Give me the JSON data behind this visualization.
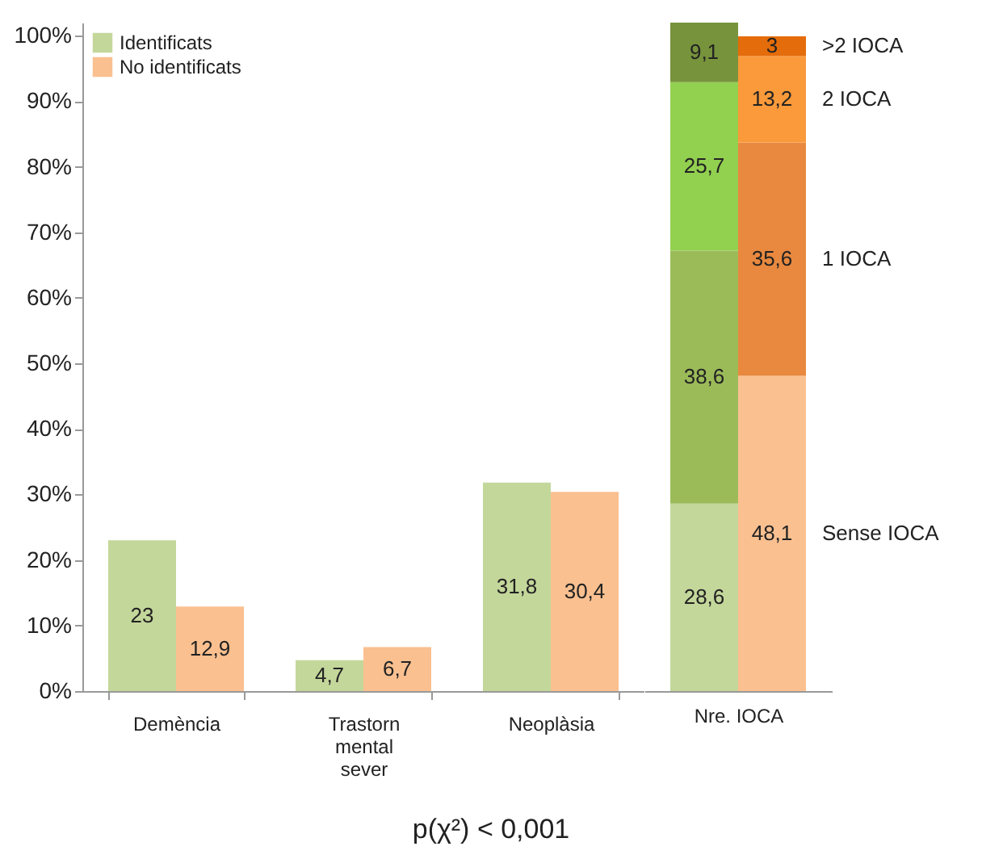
{
  "chart_data": [
    {
      "type": "bar",
      "categories": [
        "Demència",
        "Trastorn mental sever",
        "Neoplàsia"
      ],
      "series": [
        {
          "name": "Identificats",
          "color": "#c4d79b",
          "values": [
            23,
            4.7,
            31.8
          ],
          "value_labels": [
            "23",
            "4,7",
            "31,8"
          ]
        },
        {
          "name": "No identificats",
          "color": "#fac090",
          "values": [
            12.9,
            6.7,
            30.4
          ],
          "value_labels": [
            "12,9",
            "6,7",
            "30,4"
          ]
        }
      ],
      "ylim": [
        0,
        102
      ],
      "yticks": [
        {
          "value": 0,
          "label": "0%"
        },
        {
          "value": 10,
          "label": "10%"
        },
        {
          "value": 20,
          "label": "20%"
        },
        {
          "value": 30,
          "label": "30%"
        },
        {
          "value": 40,
          "label": "40%"
        },
        {
          "value": 50,
          "label": "50%"
        },
        {
          "value": 60,
          "label": "60%"
        },
        {
          "value": 70,
          "label": "70%"
        },
        {
          "value": 80,
          "label": "80%"
        },
        {
          "value": 90,
          "label": "90%"
        },
        {
          "value": 100,
          "label": "100%"
        }
      ],
      "legend": "top left",
      "annotations": [
        "p(χ²) < 0,001"
      ]
    },
    {
      "type": "bar",
      "stacked": true,
      "xlabel": "Nre. IOCA",
      "categories": [
        null,
        null
      ],
      "series": [
        {
          "name": "Sense IOCA",
          "colors": [
            "#c4d79b",
            "#fac090"
          ],
          "values": [
            28.6,
            48.1
          ],
          "value_labels": [
            "28,6",
            "48,1"
          ]
        },
        {
          "name": "1 IOCA",
          "colors": [
            "#9bbb59",
            "#e8893f"
          ],
          "values": [
            38.6,
            35.6
          ],
          "value_labels": [
            "38,6",
            "35,6"
          ]
        },
        {
          "name": "2 IOCA",
          "colors": [
            "#92d050",
            "#fa9a3a"
          ],
          "values": [
            25.7,
            13.2
          ],
          "value_labels": [
            "25,7",
            "13,2"
          ]
        },
        {
          "name": ">2 IOCA",
          "colors": [
            "#77933c",
            "#e46c0a"
          ],
          "values": [
            9.1,
            3
          ],
          "value_labels": [
            "9,1",
            "3"
          ]
        }
      ],
      "ylim": [
        0,
        102
      ],
      "tick_labels": "x"
    }
  ]
}
